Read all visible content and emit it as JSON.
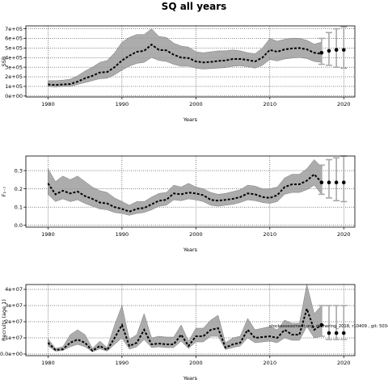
{
  "title": "SQ all years",
  "chart_data": [
    {
      "type": "line",
      "ylabel": "SSB",
      "xlabel": "Years",
      "xlim": [
        1977,
        2021.5
      ],
      "ylim": [
        -10000,
        730000
      ],
      "x_ticks": [
        1980,
        1990,
        2000,
        2010,
        2020
      ],
      "y_ticks": [
        0,
        100000,
        200000,
        300000,
        400000,
        500000,
        600000,
        700000
      ],
      "y_tick_labels": [
        "0e+00",
        "1e+05",
        "2e+05",
        "3e+05",
        "4e+05",
        "5e+05",
        "6e+05",
        "7e+05"
      ],
      "grid": true,
      "series": [
        {
          "x": [
            1980,
            1981,
            1982,
            1983,
            1984,
            1985,
            1986,
            1987,
            1988,
            1989,
            1990,
            1991,
            1992,
            1993,
            1994,
            1995,
            1996,
            1997,
            1998,
            1999,
            2000,
            2001,
            2002,
            2003,
            2004,
            2005,
            2006,
            2007,
            2008,
            2009,
            2010,
            2011,
            2012,
            2013,
            2014,
            2015,
            2016,
            2017
          ],
          "median": [
            120000,
            115000,
            120000,
            125000,
            150000,
            185000,
            210000,
            245000,
            250000,
            300000,
            370000,
            420000,
            460000,
            470000,
            535000,
            480000,
            475000,
            430000,
            400000,
            395000,
            360000,
            350000,
            355000,
            365000,
            370000,
            385000,
            385000,
            375000,
            360000,
            400000,
            480000,
            460000,
            485000,
            495000,
            500000,
            485000,
            450000,
            440000
          ],
          "upper": [
            160000,
            160000,
            165000,
            175000,
            210000,
            260000,
            300000,
            350000,
            370000,
            450000,
            560000,
            610000,
            640000,
            640000,
            700000,
            620000,
            610000,
            550000,
            520000,
            510000,
            460000,
            450000,
            460000,
            470000,
            470000,
            480000,
            470000,
            450000,
            440000,
            500000,
            600000,
            570000,
            590000,
            600000,
            600000,
            580000,
            540000,
            560000
          ],
          "lower": [
            100000,
            95000,
            100000,
            100000,
            120000,
            140000,
            160000,
            180000,
            185000,
            220000,
            270000,
            310000,
            340000,
            350000,
            400000,
            370000,
            360000,
            330000,
            310000,
            310000,
            290000,
            280000,
            285000,
            290000,
            295000,
            310000,
            315000,
            305000,
            290000,
            320000,
            380000,
            365000,
            385000,
            395000,
            400000,
            390000,
            360000,
            350000
          ]
        }
      ],
      "projection": {
        "x": [
          2017,
          2018,
          2019,
          2020
        ],
        "median": [
          450000,
          470000,
          480000,
          480000
        ],
        "upper": [
          600000,
          660000,
          700000,
          720000
        ],
        "lower": [
          330000,
          320000,
          300000,
          290000
        ]
      }
    },
    {
      "type": "line",
      "ylabel": "F₁₋₇",
      "xlabel": "Years",
      "xlim": [
        1977,
        2021.5
      ],
      "ylim": [
        -0.01,
        0.38
      ],
      "x_ticks": [
        1980,
        1990,
        2000,
        2010,
        2020
      ],
      "y_ticks": [
        0.0,
        0.1,
        0.2,
        0.3
      ],
      "y_tick_labels": [
        "0.0",
        "0.1",
        "0.2",
        "0.3"
      ],
      "grid": true,
      "series": [
        {
          "x": [
            1980,
            1981,
            1982,
            1983,
            1984,
            1985,
            1986,
            1987,
            1988,
            1989,
            1990,
            1991,
            1992,
            1993,
            1994,
            1995,
            1996,
            1997,
            1998,
            1999,
            2000,
            2001,
            2002,
            2003,
            2004,
            2005,
            2006,
            2007,
            2008,
            2009,
            2010,
            2011,
            2012,
            2013,
            2014,
            2015,
            2016,
            2017
          ],
          "median": [
            0.23,
            0.17,
            0.19,
            0.175,
            0.185,
            0.16,
            0.145,
            0.125,
            0.12,
            0.1,
            0.09,
            0.075,
            0.09,
            0.095,
            0.115,
            0.135,
            0.14,
            0.175,
            0.17,
            0.18,
            0.175,
            0.165,
            0.14,
            0.135,
            0.14,
            0.145,
            0.155,
            0.175,
            0.17,
            0.155,
            0.15,
            0.165,
            0.21,
            0.225,
            0.225,
            0.245,
            0.28,
            0.235
          ],
          "upper": [
            0.31,
            0.24,
            0.27,
            0.25,
            0.27,
            0.24,
            0.21,
            0.19,
            0.18,
            0.15,
            0.13,
            0.11,
            0.13,
            0.13,
            0.155,
            0.175,
            0.18,
            0.22,
            0.21,
            0.23,
            0.21,
            0.2,
            0.18,
            0.17,
            0.175,
            0.185,
            0.195,
            0.22,
            0.215,
            0.2,
            0.2,
            0.21,
            0.26,
            0.28,
            0.28,
            0.31,
            0.36,
            0.32
          ],
          "lower": [
            0.17,
            0.13,
            0.145,
            0.13,
            0.14,
            0.12,
            0.105,
            0.09,
            0.085,
            0.07,
            0.065,
            0.055,
            0.065,
            0.07,
            0.085,
            0.105,
            0.11,
            0.14,
            0.135,
            0.145,
            0.14,
            0.13,
            0.11,
            0.105,
            0.11,
            0.115,
            0.125,
            0.14,
            0.135,
            0.125,
            0.12,
            0.13,
            0.17,
            0.18,
            0.18,
            0.195,
            0.22,
            0.17
          ]
        }
      ],
      "projection": {
        "x": [
          2017,
          2018,
          2019,
          2020
        ],
        "median": [
          0.235,
          0.235,
          0.235,
          0.235
        ],
        "upper": [
          0.33,
          0.36,
          0.37,
          0.38
        ],
        "lower": [
          0.17,
          0.15,
          0.135,
          0.13
        ]
      }
    },
    {
      "type": "line",
      "ylabel": "Recruits (age 1)",
      "xlabel": "Years",
      "xlim": [
        1977,
        2021.5
      ],
      "ylim": [
        -1000000,
        43000000
      ],
      "x_ticks": [
        1980,
        1990,
        2000,
        2010,
        2020
      ],
      "y_ticks": [
        0,
        10000000,
        20000000,
        30000000,
        40000000
      ],
      "y_tick_labels": [
        "0.0e+00",
        "1e+07",
        "2e+07",
        "3e+07",
        "4e+07"
      ],
      "grid": true,
      "annotation": "stockassessment.org, rbbhering_2018, r10409 , git: 5034",
      "series": [
        {
          "x": [
            1980,
            1981,
            1982,
            1983,
            1984,
            1985,
            1986,
            1987,
            1988,
            1989,
            1990,
            1991,
            1992,
            1993,
            1994,
            1995,
            1996,
            1997,
            1998,
            1999,
            2000,
            2001,
            2002,
            2003,
            2004,
            2005,
            2006,
            2007,
            2008,
            2009,
            2010,
            2011,
            2012,
            2013,
            2014,
            2015,
            2016,
            2017
          ],
          "median": [
            7000000,
            2500000,
            3000000,
            7000000,
            9000000,
            7000000,
            2000000,
            5000000,
            2500000,
            10000000,
            18000000,
            5000000,
            7000000,
            15000000,
            6000000,
            6500000,
            6000000,
            6000000,
            12000000,
            5000000,
            11000000,
            11000000,
            15000000,
            16000000,
            4000000,
            6000000,
            7000000,
            15000000,
            10000000,
            10500000,
            11000000,
            10000000,
            15000000,
            12000000,
            12000000,
            28000000,
            15000000,
            18000000
          ],
          "upper": [
            9500000,
            3500000,
            4500000,
            12000000,
            15000000,
            12000000,
            3500000,
            8000000,
            4000000,
            18000000,
            30000000,
            9000000,
            12000000,
            25000000,
            10000000,
            11000000,
            10500000,
            10500000,
            18000000,
            8000000,
            16000000,
            16000000,
            21000000,
            24000000,
            7000000,
            10000000,
            11000000,
            22000000,
            15000000,
            16000000,
            17000000,
            15000000,
            21000000,
            19000000,
            19000000,
            43000000,
            25000000,
            30000000
          ],
          "lower": [
            5000000,
            1800000,
            2200000,
            4500000,
            6000000,
            4500000,
            1400000,
            3200000,
            1800000,
            6000000,
            10000000,
            3000000,
            4500000,
            9000000,
            4000000,
            4500000,
            4000000,
            4000000,
            8000000,
            3500000,
            7500000,
            7500000,
            11000000,
            11000000,
            2800000,
            4000000,
            5000000,
            10000000,
            7000000,
            7500000,
            8000000,
            7000000,
            10000000,
            8500000,
            8500000,
            17000000,
            10000000,
            11000000
          ]
        }
      ],
      "projection": {
        "x": [
          2017,
          2018,
          2019,
          2020
        ],
        "median": [
          18000000,
          13000000,
          13000000,
          13000000
        ],
        "upper": [
          30000000,
          30000000,
          30000000,
          30000000
        ],
        "lower": [
          11000000,
          9000000,
          9000000,
          9000000
        ]
      }
    }
  ]
}
